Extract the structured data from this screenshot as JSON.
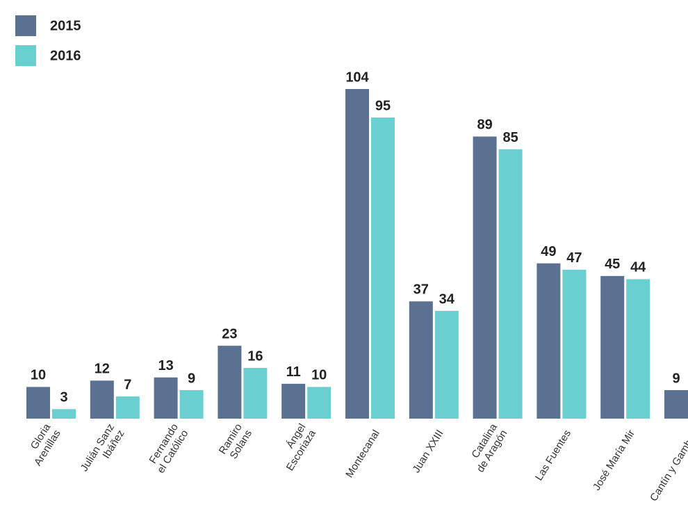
{
  "chart_data": {
    "type": "bar",
    "categories": [
      "Gloria\nArenillas",
      "Julián Sanz\nIbáñez",
      "Fernando\nel Católico",
      "Ramiro\nSolans",
      "Ángel\nEscoriaza",
      "Montecanal",
      "Juan XXIII",
      "Catalina\nde Aragón",
      "Las Fuentes",
      "José María Mir",
      "Cantín y Gamboa"
    ],
    "series": [
      {
        "name": "2015",
        "color": "#5a7191",
        "values": [
          10,
          12,
          13,
          23,
          11,
          104,
          37,
          89,
          49,
          45,
          9
        ]
      },
      {
        "name": "2016",
        "color": "#6acfd1",
        "values": [
          3,
          7,
          9,
          16,
          10,
          95,
          34,
          85,
          47,
          44,
          null
        ]
      }
    ]
  }
}
